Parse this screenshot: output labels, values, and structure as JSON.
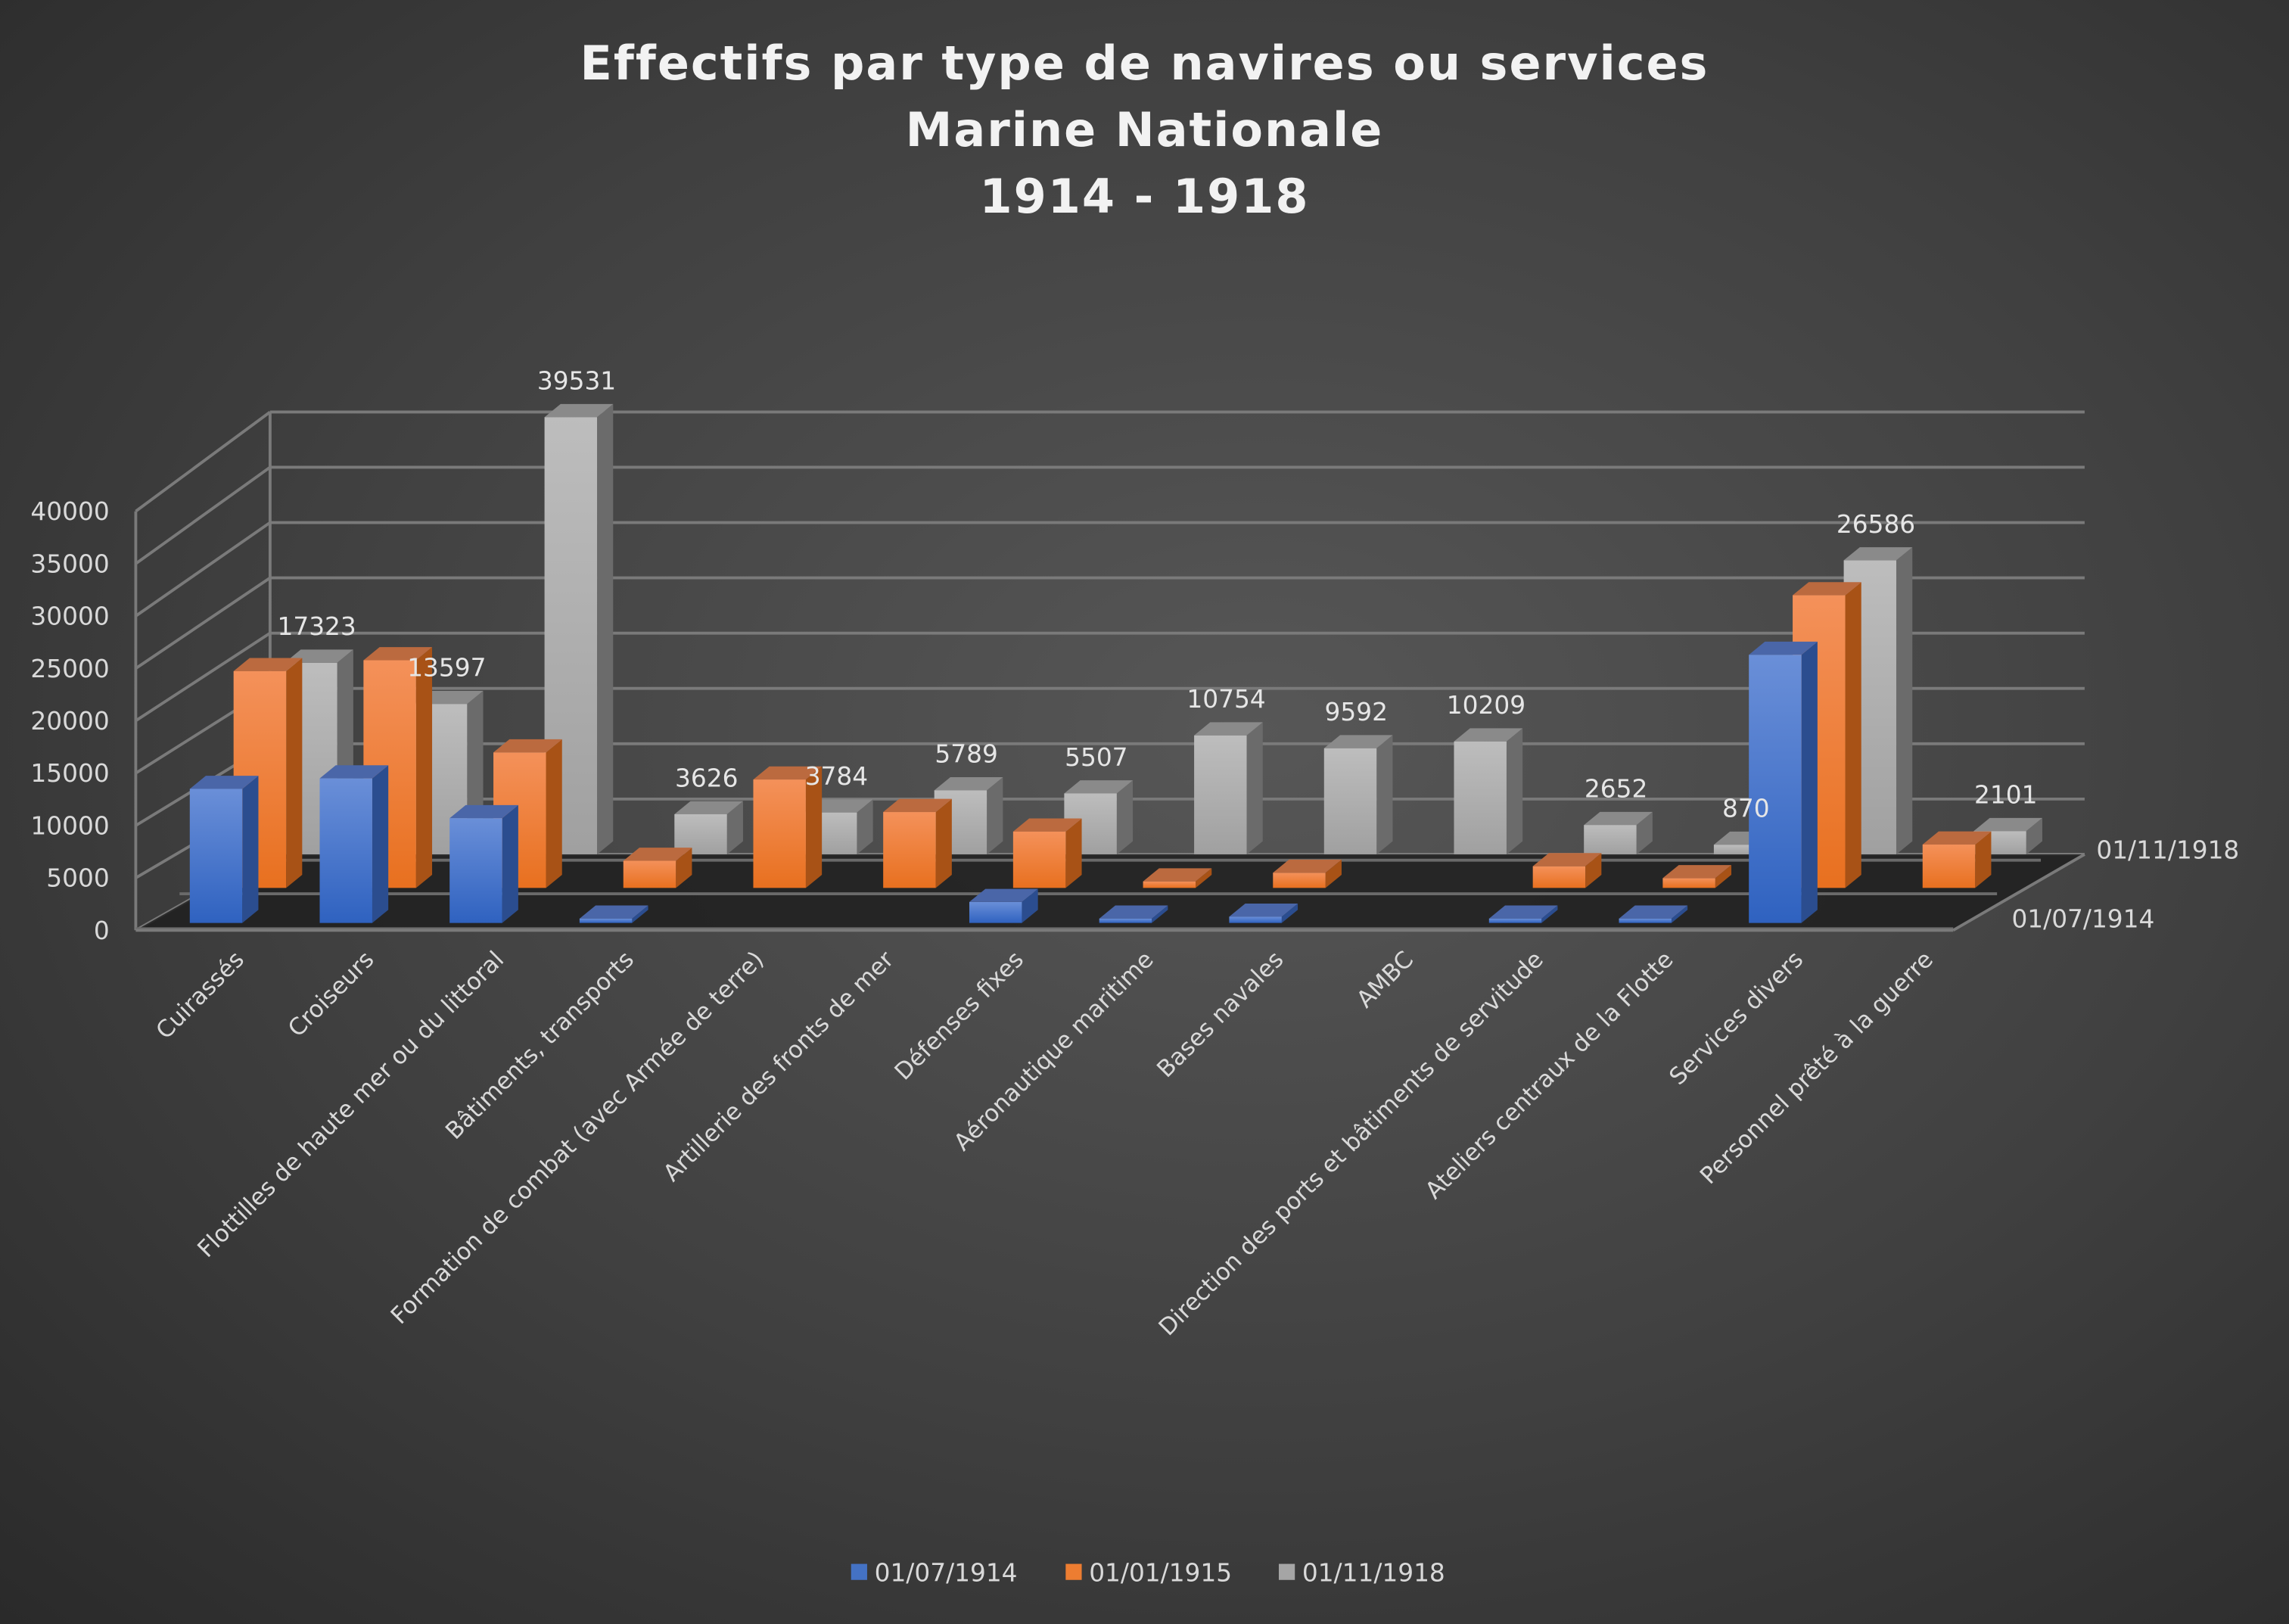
{
  "chart_data": {
    "type": "bar",
    "subtype": "3d-clustered-column",
    "title": [
      "Effectifs par type de navires ou services",
      "Marine Nationale",
      "1914 - 1918"
    ],
    "xlabel": "",
    "ylabel": "",
    "ylim": [
      0,
      40000
    ],
    "yticks": [
      "0",
      "5000",
      "10000",
      "15000",
      "20000",
      "25000",
      "30000",
      "35000",
      "40000"
    ],
    "grid": true,
    "legend_position": "bottom",
    "depth_axis_labels": [
      "01/07/1914",
      "01/11/1918"
    ],
    "categories": [
      "Cuirassés",
      "Croiseurs",
      "Flottilles de haute mer ou du littoral",
      "Bâtiments, transports",
      "Formation de combat (avec Armée de terre)",
      "Artillerie des fronts de mer",
      "Défenses fixes",
      "Aéronautique maritime",
      "Bases navales",
      "AMBC",
      "Direction des ports et bâtiments de servitude",
      "Ateliers centraux  de la Flotte",
      "Services divers",
      "Personnel prêté à la guerre"
    ],
    "series": [
      {
        "name": "01/07/1914",
        "color": "#4472c4",
        "values": [
          12800,
          13800,
          10000,
          200,
          null,
          null,
          2000,
          300,
          600,
          null,
          300,
          400,
          25600,
          null
        ]
      },
      {
        "name": "01/01/1915",
        "color": "#ed7d31",
        "values": [
          20000,
          21000,
          12500,
          2500,
          10000,
          7000,
          5200,
          600,
          1400,
          null,
          2000,
          900,
          27000,
          4000
        ]
      },
      {
        "name": "01/11/1918",
        "color": "#a5a5a5",
        "values": [
          17323,
          13597,
          39531,
          3626,
          3784,
          5789,
          5507,
          10754,
          9592,
          10209,
          2652,
          870,
          26586,
          2101
        ],
        "data_labels": [
          "17323",
          "13597",
          "39531",
          "3626",
          "3784",
          "5789",
          "5507",
          "10754",
          "9592",
          "10209",
          "2652",
          "870",
          "26586",
          "2101"
        ]
      }
    ]
  }
}
